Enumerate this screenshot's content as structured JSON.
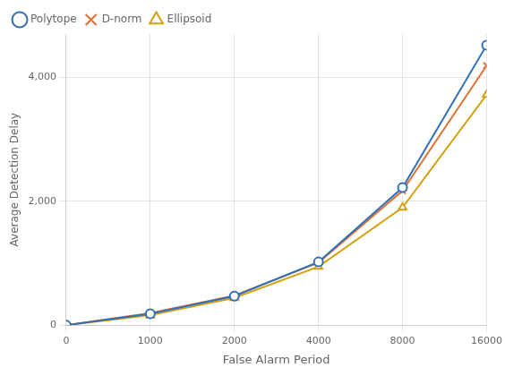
{
  "chart_data": {
    "type": "line",
    "categories": [
      "0",
      "1000",
      "2000",
      "4000",
      "8000",
      "16000"
    ],
    "series": [
      {
        "name": "Polytope",
        "color": "#3070b8",
        "marker": "circle",
        "values": [
          0,
          185,
          470,
          1020,
          2220,
          4520
        ]
      },
      {
        "name": "D-norm",
        "color": "#e07030",
        "marker": "x",
        "values": [
          0,
          195,
          478,
          1010,
          2170,
          4190
        ]
      },
      {
        "name": "Ellipsoid",
        "color": "#d4a010",
        "marker": "triangle",
        "values": [
          0,
          160,
          440,
          945,
          1900,
          3720
        ]
      }
    ],
    "xlabel": "False Alarm Period",
    "ylabel": "Average Detection Delay",
    "ylim": [
      0,
      4700
    ],
    "yticks": [
      0,
      {
        "value": 2000,
        "label": "2,000"
      },
      {
        "value": 4000,
        "label": "4,000"
      }
    ],
    "grid": true,
    "legend": "upper left"
  }
}
